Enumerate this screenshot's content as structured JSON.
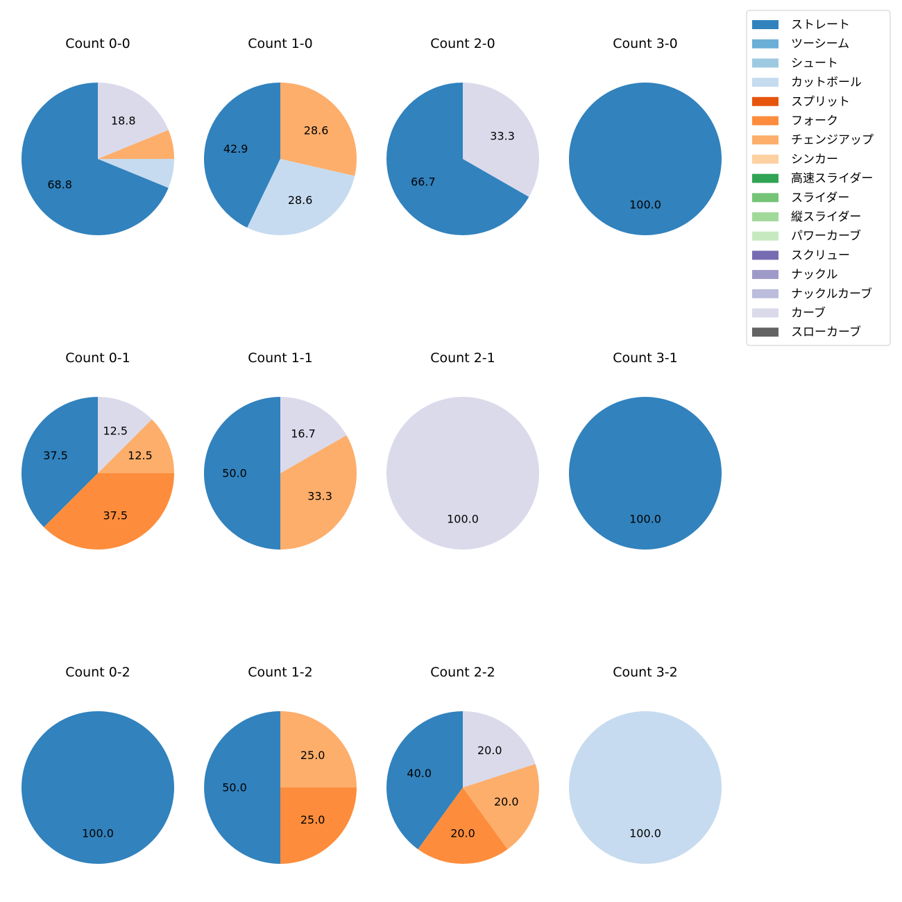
{
  "chart_data": {
    "type": "pie",
    "legend_placement": "top-right",
    "pitch_types": [
      {
        "name": "ストレート",
        "color": "#3182bd"
      },
      {
        "name": "ツーシーム",
        "color": "#6baed6"
      },
      {
        "name": "シュート",
        "color": "#9ecae1"
      },
      {
        "name": "カットボール",
        "color": "#c6dbef"
      },
      {
        "name": "スプリット",
        "color": "#e6550d"
      },
      {
        "name": "フォーク",
        "color": "#fd8d3c"
      },
      {
        "name": "チェンジアップ",
        "color": "#fdae6b"
      },
      {
        "name": "シンカー",
        "color": "#fdd0a2"
      },
      {
        "name": "高速スライダー",
        "color": "#31a354"
      },
      {
        "name": "スライダー",
        "color": "#74c476"
      },
      {
        "name": "縦スライダー",
        "color": "#a1d99b"
      },
      {
        "name": "パワーカーブ",
        "color": "#c7e9c0"
      },
      {
        "name": "スクリュー",
        "color": "#756bb1"
      },
      {
        "name": "ナックル",
        "color": "#9e9ac8"
      },
      {
        "name": "ナックルカーブ",
        "color": "#bcbddc"
      },
      {
        "name": "カーブ",
        "color": "#dadaeb"
      },
      {
        "name": "スローカーブ",
        "color": "#636363"
      }
    ],
    "charts": [
      {
        "title": "Count 0-0",
        "slices": [
          {
            "pitch": "ストレート",
            "value": 68.8
          },
          {
            "pitch": "カットボール",
            "value": 6.2
          },
          {
            "pitch": "チェンジアップ",
            "value": 6.2
          },
          {
            "pitch": "カーブ",
            "value": 18.8
          }
        ]
      },
      {
        "title": "Count 1-0",
        "slices": [
          {
            "pitch": "ストレート",
            "value": 42.9
          },
          {
            "pitch": "カットボール",
            "value": 28.6
          },
          {
            "pitch": "チェンジアップ",
            "value": 28.6
          }
        ]
      },
      {
        "title": "Count 2-0",
        "slices": [
          {
            "pitch": "ストレート",
            "value": 66.7
          },
          {
            "pitch": "カーブ",
            "value": 33.3
          }
        ]
      },
      {
        "title": "Count 3-0",
        "slices": [
          {
            "pitch": "ストレート",
            "value": 100.0
          }
        ]
      },
      {
        "title": "Count 0-1",
        "slices": [
          {
            "pitch": "ストレート",
            "value": 37.5
          },
          {
            "pitch": "フォーク",
            "value": 37.5
          },
          {
            "pitch": "チェンジアップ",
            "value": 12.5
          },
          {
            "pitch": "カーブ",
            "value": 12.5
          }
        ]
      },
      {
        "title": "Count 1-1",
        "slices": [
          {
            "pitch": "ストレート",
            "value": 50.0
          },
          {
            "pitch": "チェンジアップ",
            "value": 33.3
          },
          {
            "pitch": "カーブ",
            "value": 16.7
          }
        ]
      },
      {
        "title": "Count 2-1",
        "slices": [
          {
            "pitch": "カーブ",
            "value": 100.0
          }
        ]
      },
      {
        "title": "Count 3-1",
        "slices": [
          {
            "pitch": "ストレート",
            "value": 100.0
          }
        ]
      },
      {
        "title": "Count 0-2",
        "slices": [
          {
            "pitch": "ストレート",
            "value": 100.0
          }
        ]
      },
      {
        "title": "Count 1-2",
        "slices": [
          {
            "pitch": "ストレート",
            "value": 50.0
          },
          {
            "pitch": "フォーク",
            "value": 25.0
          },
          {
            "pitch": "チェンジアップ",
            "value": 25.0
          }
        ]
      },
      {
        "title": "Count 2-2",
        "slices": [
          {
            "pitch": "ストレート",
            "value": 40.0
          },
          {
            "pitch": "フォーク",
            "value": 20.0
          },
          {
            "pitch": "チェンジアップ",
            "value": 20.0
          },
          {
            "pitch": "カーブ",
            "value": 20.0
          }
        ]
      },
      {
        "title": "Count 3-2",
        "slices": [
          {
            "pitch": "カットボール",
            "value": 100.0
          }
        ]
      }
    ]
  }
}
